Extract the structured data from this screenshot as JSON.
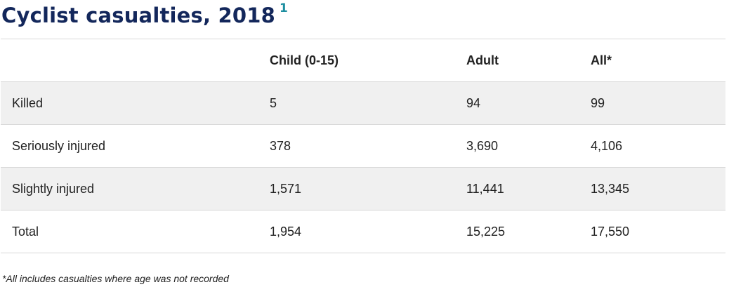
{
  "title": {
    "text": "Cyclist casualties, 2018",
    "footnote_marker": "1"
  },
  "table": {
    "columns": [
      "",
      "Child (0-15)",
      "Adult",
      "All*"
    ],
    "rows": [
      {
        "label": "Killed",
        "child": "5",
        "adult": "94",
        "all": "99"
      },
      {
        "label": "Seriously injured",
        "child": "378",
        "adult": "3,690",
        "all": "4,106"
      },
      {
        "label": "Slightly injured",
        "child": "1,571",
        "adult": "11,441",
        "all": "13,345"
      },
      {
        "label": "Total",
        "child": "1,954",
        "adult": "15,225",
        "all": "17,550"
      }
    ]
  },
  "note": "*All includes casualties where age was not recorded",
  "colors": {
    "title": "#13275b",
    "footnote_marker": "#1d8ea0",
    "row_stripe": "#f0f0f0",
    "border": "#d8d8d8",
    "text": "#222222"
  }
}
